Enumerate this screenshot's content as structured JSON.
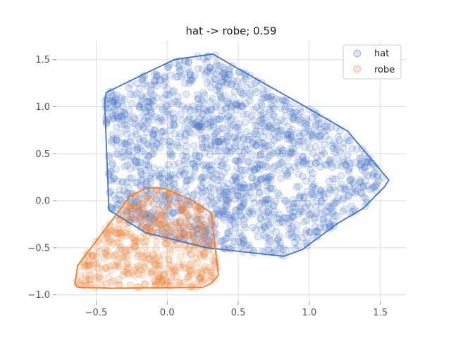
{
  "chart_data": {
    "type": "scatter",
    "title": "hat -> robe; 0.59",
    "xlabel": "",
    "ylabel": "",
    "xlim": [
      -0.78,
      1.68
    ],
    "ylim": [
      -1.07,
      1.7
    ],
    "x_ticks": [
      -0.5,
      0.0,
      0.5,
      1.0,
      1.5
    ],
    "x_tick_labels": [
      "−0.5",
      "0.0",
      "0.5",
      "1.0",
      "1.5"
    ],
    "y_ticks": [
      -1.0,
      -0.5,
      0.0,
      0.5,
      1.0,
      1.5
    ],
    "y_tick_labels": [
      "−1.0",
      "−0.5",
      "0.0",
      "0.5",
      "1.0",
      "1.5"
    ],
    "grid": true,
    "legend_position": "top-right",
    "series": [
      {
        "name": "hat",
        "color": "#4472c4",
        "point_count": 1600,
        "hull": [
          [
            -0.43,
            1.15
          ],
          [
            -0.2,
            1.32
          ],
          [
            0.05,
            1.5
          ],
          [
            0.32,
            1.56
          ],
          [
            0.55,
            1.36
          ],
          [
            0.95,
            1.02
          ],
          [
            1.27,
            0.74
          ],
          [
            1.56,
            0.22
          ],
          [
            1.53,
            0.15
          ],
          [
            1.38,
            -0.08
          ],
          [
            1.2,
            -0.24
          ],
          [
            0.95,
            -0.52
          ],
          [
            0.82,
            -0.59
          ],
          [
            0.28,
            -0.5
          ],
          [
            -0.15,
            -0.34
          ],
          [
            -0.41,
            -0.1
          ],
          [
            -0.44,
            1.03
          ]
        ]
      },
      {
        "name": "robe",
        "color": "#ed7d31",
        "point_count": 500,
        "hull": [
          [
            -0.26,
            0.05
          ],
          [
            -0.14,
            0.14
          ],
          [
            -0.02,
            0.13
          ],
          [
            0.18,
            0.0
          ],
          [
            0.31,
            -0.13
          ],
          [
            0.36,
            -0.79
          ],
          [
            0.31,
            -0.88
          ],
          [
            0.25,
            -0.92
          ],
          [
            -0.38,
            -0.93
          ],
          [
            -0.63,
            -0.92
          ],
          [
            -0.65,
            -0.89
          ],
          [
            -0.63,
            -0.69
          ]
        ]
      }
    ]
  }
}
